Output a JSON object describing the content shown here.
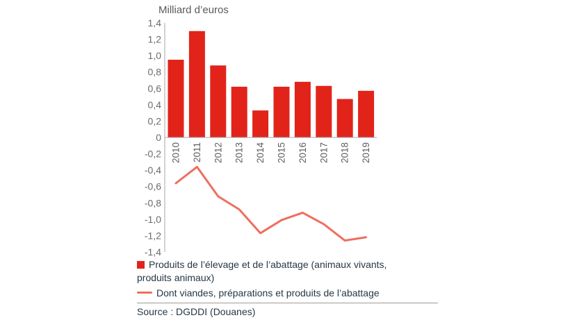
{
  "title": "Milliard d’euros",
  "source": "Source : DGDDI (Douanes)",
  "legend": [
    {
      "type": "bar",
      "label": "Produits de l’élevage et de l’abattage (animaux vivants, produits animaux)"
    },
    {
      "type": "line",
      "label": "Dont viandes, préparations et produits de l’abattage"
    }
  ],
  "colors": {
    "bar": "#e2231a",
    "line": "#ef6e5e",
    "axis": "#a6a6a6",
    "tick_text": "#6b6b6b",
    "legend_text": "#253746"
  },
  "chart_data": {
    "type": "bar+line",
    "title": "Milliard d’euros",
    "ylabel": "Milliard d’euros",
    "categories": [
      "2010",
      "2011",
      "2012",
      "2013",
      "2014",
      "2015",
      "2016",
      "2017",
      "2018",
      "2019"
    ],
    "series": [
      {
        "name": "Produits de l’élevage et de l’abattage (animaux vivants, produits animaux)",
        "type": "bar",
        "color": "#e2231a",
        "values": [
          0.95,
          1.3,
          0.88,
          0.62,
          0.33,
          0.62,
          0.68,
          0.63,
          0.47,
          0.57
        ]
      },
      {
        "name": "Dont viandes, préparations et produits de l’abattage",
        "type": "line",
        "color": "#ef6e5e",
        "values": [
          -0.56,
          -0.36,
          -0.72,
          -0.88,
          -1.17,
          -1.01,
          -0.92,
          -1.06,
          -1.26,
          -1.22
        ]
      }
    ],
    "ylim": [
      -1.4,
      1.4
    ],
    "ytick_step": 0.2,
    "ytick_labels": [
      "1,4",
      "1,2",
      "1,0",
      "0,8",
      "0,6",
      "0,4",
      "0,2",
      "0",
      "-0,2",
      "-0,4",
      "-0,6",
      "-0,8",
      "-1,0",
      "-1,2",
      "-1,4"
    ],
    "grid": false,
    "legend_position": "bottom"
  }
}
